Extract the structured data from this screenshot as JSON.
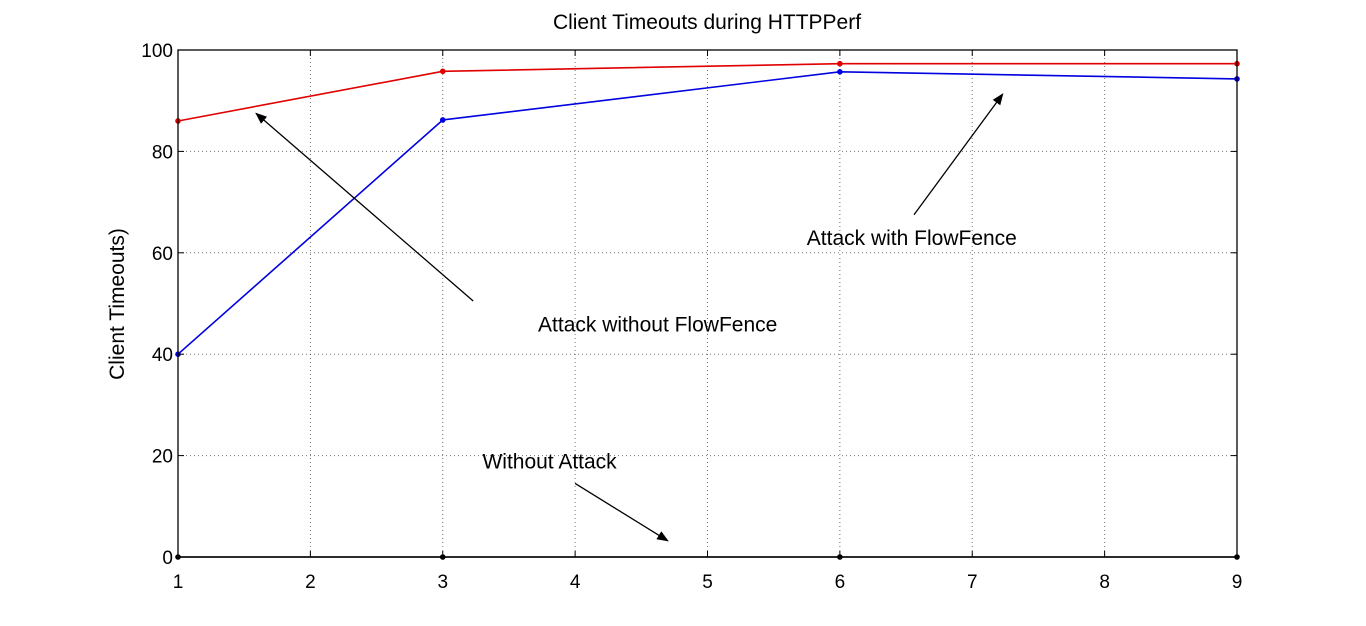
{
  "chart_data": {
    "type": "line",
    "title": "Client Timeouts during HTTPPerf",
    "xlabel": "",
    "ylabel": "Client Timeouts)",
    "xlim": [
      1,
      9
    ],
    "ylim": [
      0,
      100
    ],
    "xticks": [
      1,
      2,
      3,
      4,
      5,
      6,
      7,
      8,
      9
    ],
    "yticks": [
      0,
      20,
      40,
      60,
      80,
      100
    ],
    "grid": true,
    "series": [
      {
        "key": "attack-without-flowfence",
        "color": "#e00000",
        "x": [
          1,
          3,
          6,
          9
        ],
        "y": [
          86,
          95.8,
          97.3,
          97.3
        ]
      },
      {
        "key": "attack-with-flowfence",
        "color": "#0000e0",
        "x": [
          1,
          3,
          6,
          9
        ],
        "y": [
          40,
          86.2,
          95.7,
          94.3
        ]
      },
      {
        "key": "without-attack",
        "color": "#000000",
        "x": [
          1,
          3,
          6,
          9
        ],
        "y": [
          0,
          0,
          0,
          0
        ]
      }
    ],
    "annotations": [
      {
        "key": "attack-without-flowfence-label",
        "text": "Attack without FlowFence",
        "text_at": [
          3.72,
          44.5
        ],
        "arrow_from": [
          3.23,
          50.5
        ],
        "arrow_to": [
          1.59,
          87.5
        ]
      },
      {
        "key": "attack-with-flowfence-label",
        "text": "Attack with FlowFence",
        "text_at": [
          5.75,
          61.5
        ],
        "arrow_from": [
          6.56,
          67.5
        ],
        "arrow_to": [
          7.23,
          91.3
        ]
      },
      {
        "key": "without-attack-label",
        "text": "Without Attack",
        "text_at": [
          3.3,
          17.5
        ],
        "arrow_from": [
          4.0,
          14.5
        ],
        "arrow_to": [
          4.7,
          3.2
        ]
      }
    ]
  }
}
